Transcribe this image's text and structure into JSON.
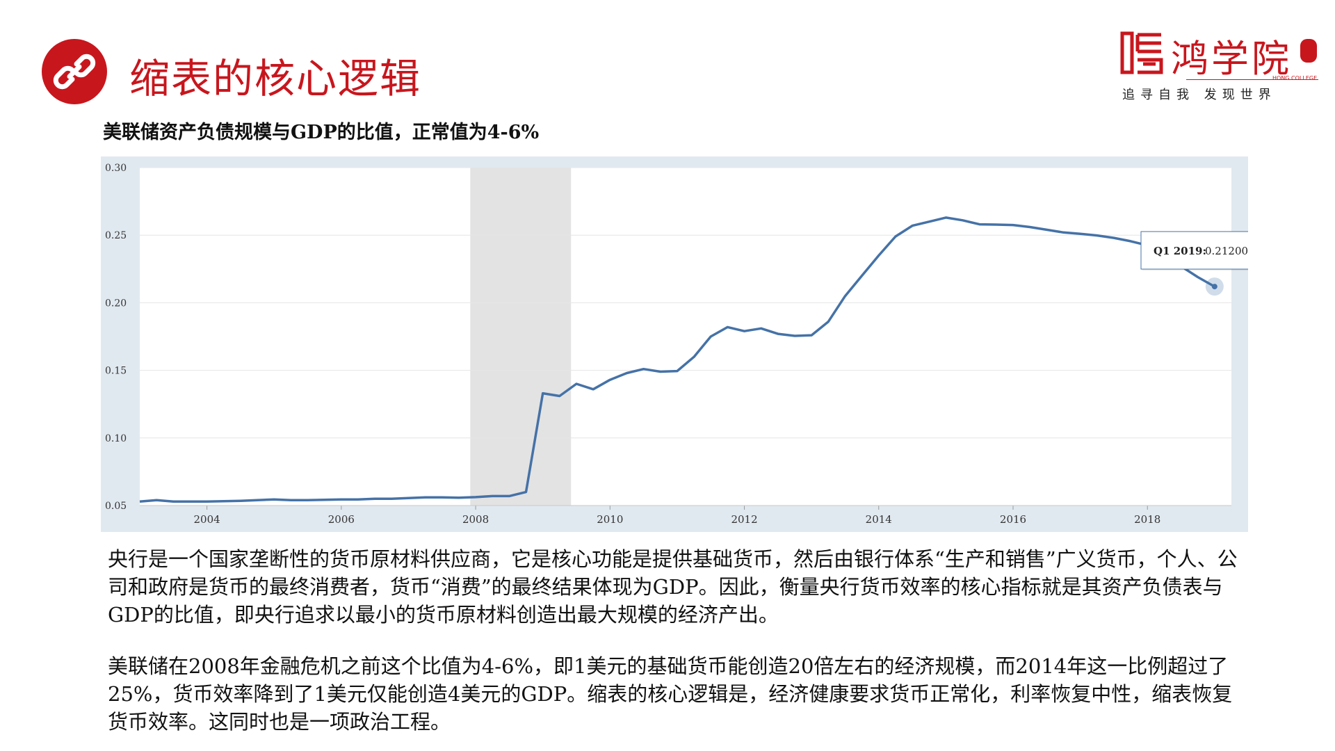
{
  "header": {
    "title": "缩表的核心逻辑",
    "icon": "link-icon",
    "accent_color": "#c8161d"
  },
  "logo": {
    "name": "鸿学院",
    "english": "HONG COLLEGE",
    "slogan": "追寻自我 发现世界"
  },
  "chart": {
    "caption": "美联储资产负债规模与GDP的比值，正常值为4-6%"
  },
  "chart_data": {
    "type": "line",
    "title": "",
    "xlabel": "",
    "ylabel": "",
    "xlim": [
      2003.0,
      2019.25
    ],
    "ylim": [
      0.05,
      0.3
    ],
    "grid": true,
    "y_ticks": [
      "0.30",
      "0.25",
      "0.20",
      "0.15",
      "0.10",
      "0.05"
    ],
    "x_ticks": [
      "2004",
      "2006",
      "2008",
      "2010",
      "2012",
      "2014",
      "2016",
      "2018"
    ],
    "recession": {
      "start": 2007.92,
      "end": 2009.42,
      "color": "#e3e3e3"
    },
    "series": [
      {
        "color": "#4572a7",
        "x": [
          2003.0,
          2003.25,
          2003.5,
          2003.75,
          2004.0,
          2004.25,
          2004.5,
          2004.75,
          2005.0,
          2005.25,
          2005.5,
          2005.75,
          2006.0,
          2006.25,
          2006.5,
          2006.75,
          2007.0,
          2007.25,
          2007.5,
          2007.75,
          2008.0,
          2008.25,
          2008.5,
          2008.75,
          2009.0,
          2009.25,
          2009.5,
          2009.75,
          2010.0,
          2010.25,
          2010.5,
          2010.75,
          2011.0,
          2011.25,
          2011.5,
          2011.75,
          2012.0,
          2012.25,
          2012.5,
          2012.75,
          2013.0,
          2013.25,
          2013.5,
          2013.75,
          2014.0,
          2014.25,
          2014.5,
          2014.75,
          2015.0,
          2015.25,
          2015.5,
          2015.75,
          2016.0,
          2016.25,
          2016.5,
          2016.75,
          2017.0,
          2017.25,
          2017.5,
          2017.75,
          2018.0,
          2018.25,
          2018.5,
          2018.75,
          2019.0
        ],
        "y": [
          0.053,
          0.054,
          0.053,
          0.053,
          0.053,
          0.0532,
          0.0535,
          0.054,
          0.0545,
          0.054,
          0.054,
          0.0542,
          0.0545,
          0.0545,
          0.055,
          0.055,
          0.0555,
          0.056,
          0.056,
          0.0558,
          0.0562,
          0.057,
          0.057,
          0.06,
          0.133,
          0.131,
          0.14,
          0.136,
          0.143,
          0.148,
          0.151,
          0.149,
          0.1495,
          0.16,
          0.175,
          0.182,
          0.179,
          0.181,
          0.177,
          0.1755,
          0.176,
          0.186,
          0.205,
          0.22,
          0.235,
          0.249,
          0.257,
          0.26,
          0.263,
          0.261,
          0.258,
          0.2578,
          0.2575,
          0.256,
          0.254,
          0.252,
          0.251,
          0.2498,
          0.248,
          0.2455,
          0.2425,
          0.235,
          0.227,
          0.219,
          0.212
        ]
      }
    ],
    "tooltip": {
      "label": "Q1 2019:",
      "value": "0.21200",
      "x": 2019.0,
      "y": 0.212
    }
  },
  "body": {
    "paragraph_1": "央行是一个国家垄断性的货币原材料供应商，它是核心功能是提供基础货币，然后由银行体系“生产和销售”广义货币，个人、公司和政府是货币的最终消费者，货币“消费”的最终结果体现为GDP。因此，衡量央行货币效率的核心指标就是其资产负债表与GDP的比值，即央行追求以最小的货币原材料创造出最大规模的经济产出。",
    "paragraph_2": "美联储在2008年金融危机之前这个比值为4-6%，即1美元的基础货币能创造20倍左右的经济规模，而2014年这一比例超过了25%，货币效率降到了1美元仅能创造4美元的GDP。缩表的核心逻辑是，经济健康要求货币正常化，利率恢复中性，缩表恢复货币效率。这同时也是一项政治工程。"
  }
}
